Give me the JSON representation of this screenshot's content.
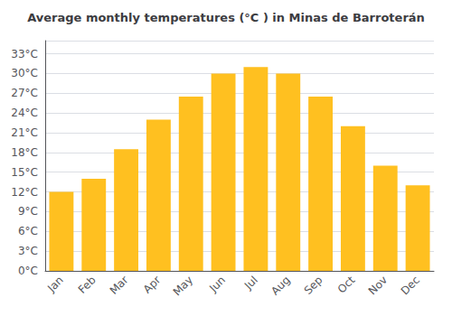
{
  "chart_data": {
    "type": "bar",
    "title": "Average monthly temperatures (°C ) in Minas de Barroterán",
    "categories": [
      "Jan",
      "Feb",
      "Mar",
      "Apr",
      "May",
      "Jun",
      "Jul",
      "Aug",
      "Sep",
      "Oct",
      "Nov",
      "Dec"
    ],
    "values": [
      12,
      14,
      18.5,
      23,
      26.5,
      30,
      31,
      30,
      26.5,
      22,
      16,
      13
    ],
    "color": "#FFC020",
    "ylim": [
      0,
      35
    ],
    "yticks": [
      {
        "value": 0,
        "label": "0°C"
      },
      {
        "value": 3,
        "label": "3°C"
      },
      {
        "value": 6,
        "label": "6°C"
      },
      {
        "value": 9,
        "label": "9°C"
      },
      {
        "value": 12,
        "label": "12°C"
      },
      {
        "value": 15,
        "label": "15°C"
      },
      {
        "value": 18,
        "label": "18°C"
      },
      {
        "value": 21,
        "label": "21°C"
      },
      {
        "value": 24,
        "label": "24°C"
      },
      {
        "value": 27,
        "label": "27°C"
      },
      {
        "value": 30,
        "label": "30°C"
      },
      {
        "value": 33,
        "label": "33°C"
      }
    ],
    "grid": true
  }
}
